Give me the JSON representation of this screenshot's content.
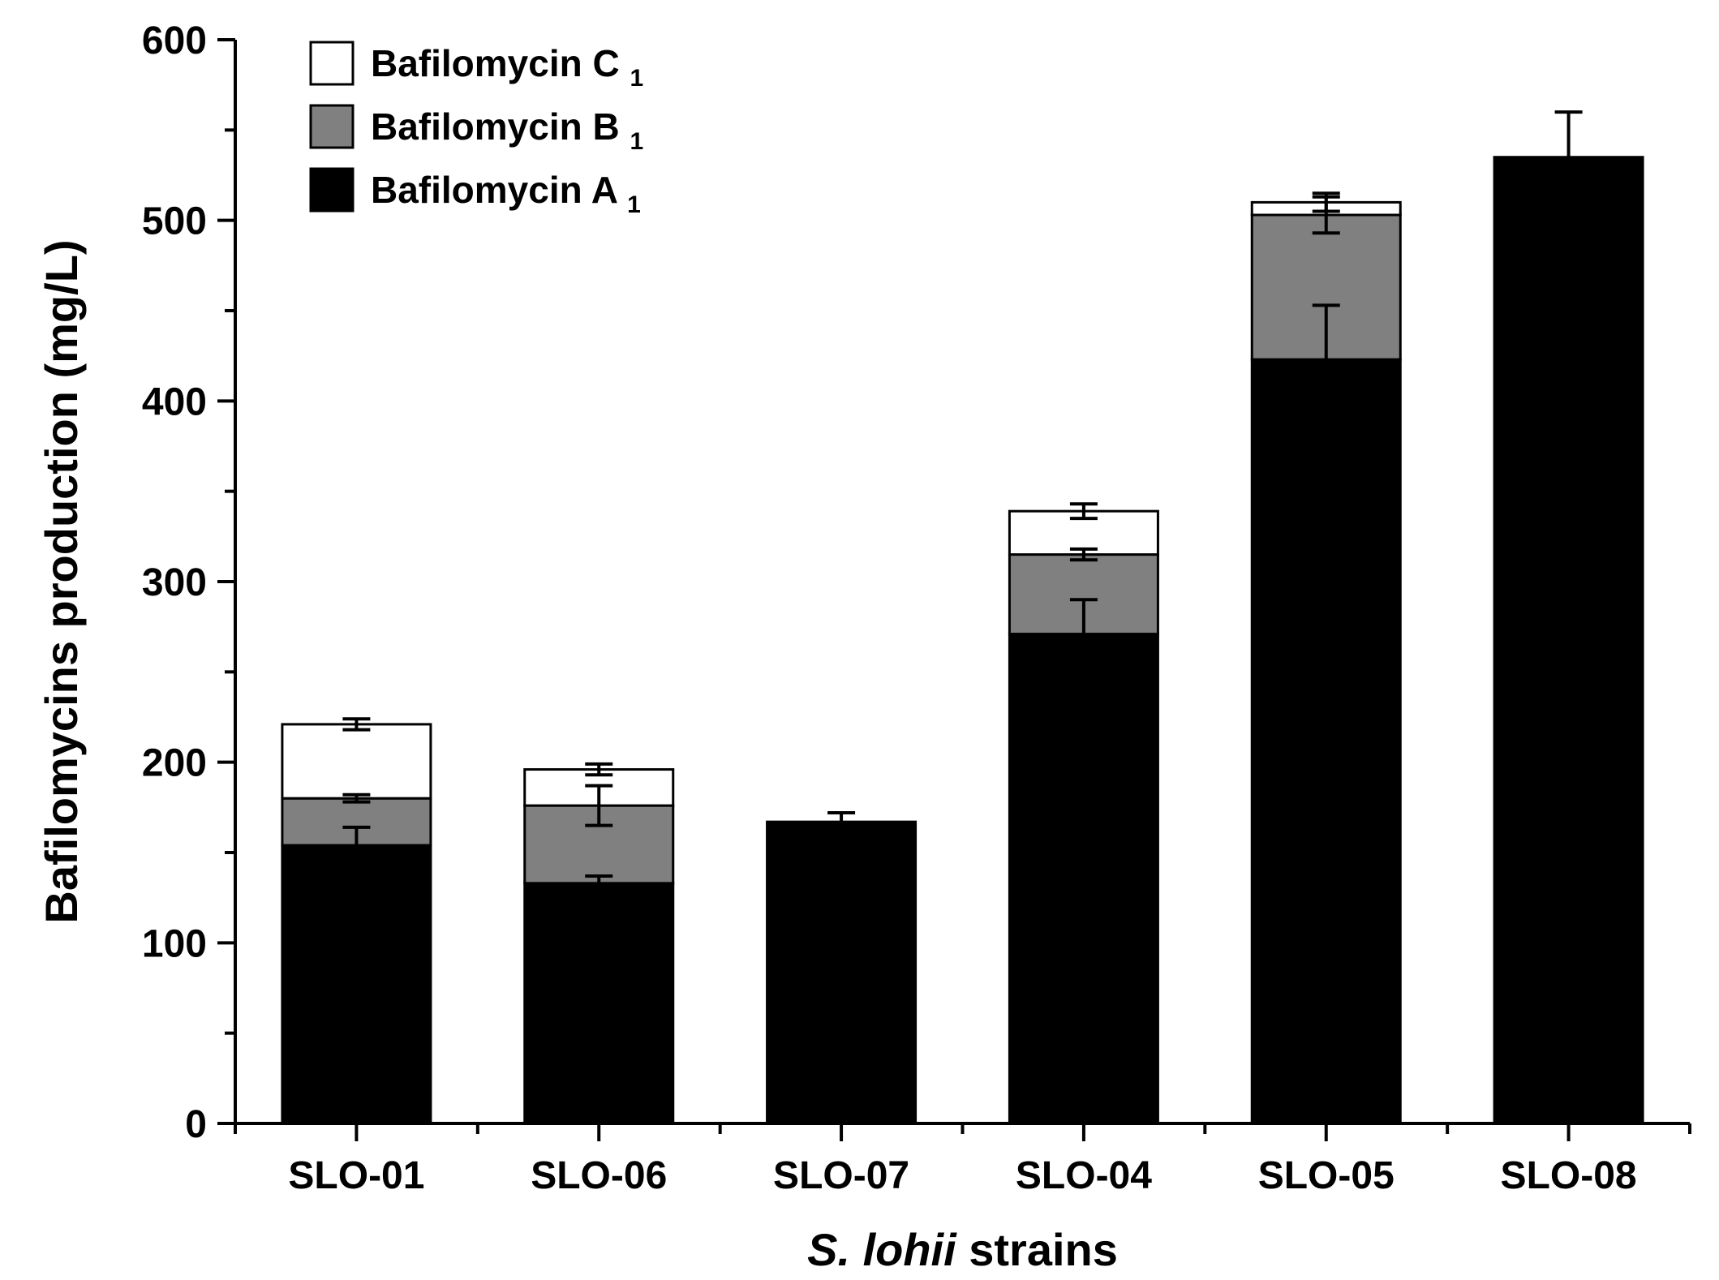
{
  "chart_data": {
    "type": "bar",
    "stacked": true,
    "error_bars": true,
    "categories": [
      "SLO-01",
      "SLO-06",
      "SLO-07",
      "SLO-04",
      "SLO-05",
      "SLO-08"
    ],
    "series": [
      {
        "name": "Bafilomycin A",
        "subscript": "1",
        "color": "#000000",
        "values": [
          154,
          133,
          167,
          271,
          423,
          535
        ],
        "errors": [
          10,
          4,
          5,
          19,
          30,
          25
        ]
      },
      {
        "name": "Bafilomycin B",
        "subscript": "1",
        "color": "#808080",
        "values": [
          26,
          43,
          0,
          44,
          80,
          0
        ],
        "errors": [
          2,
          11,
          0,
          3,
          10,
          0
        ]
      },
      {
        "name": "Bafilomycin C",
        "subscript": "1",
        "color": "#ffffff",
        "values": [
          41,
          20,
          0,
          24,
          7,
          0
        ],
        "errors": [
          3,
          3,
          0,
          4,
          5,
          0
        ]
      }
    ],
    "legend_order": [
      2,
      1,
      0
    ],
    "legend_position": "top-left",
    "ylim": [
      0,
      600
    ],
    "yticks": [
      0,
      100,
      200,
      300,
      400,
      500,
      600
    ],
    "ylabel": "Bafilomycins production (mg/L)",
    "xlabel_italic": "S. lohii",
    "xlabel_rest": " strains",
    "grid": false
  }
}
